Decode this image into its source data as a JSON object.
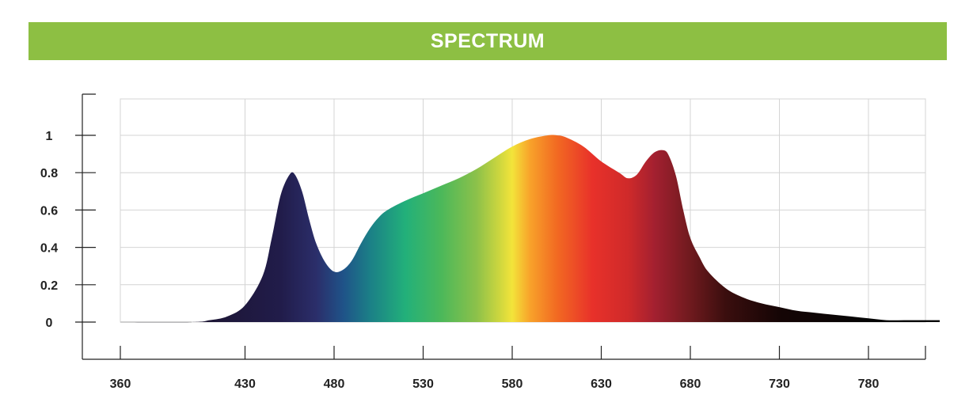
{
  "banner": {
    "title": "SPECTRUM",
    "color": "#8dbf43"
  },
  "chart_data": {
    "type": "area",
    "title": "SPECTRUM",
    "xlabel": "",
    "ylabel": "",
    "xlim": [
      345,
      830
    ],
    "ylim": [
      -0.2,
      1.2
    ],
    "grid": true,
    "x_ticks": [
      360,
      430,
      480,
      530,
      580,
      630,
      680,
      730,
      780
    ],
    "x_tick_labels": [
      "360",
      "430",
      "480",
      "530",
      "580",
      "630",
      "680",
      "730",
      "780"
    ],
    "y_ticks": [
      0,
      0.2,
      0.4,
      0.6,
      0.8,
      1
    ],
    "y_tick_labels": [
      "0",
      "0.2",
      "0.4",
      "0.6",
      "0.8",
      "1"
    ],
    "series": [
      {
        "x": [
          360,
          400,
          410,
          420,
          430,
          440,
          445,
          450,
          455,
          458,
          462,
          466,
          470,
          475,
          480,
          485,
          490,
          495,
          500,
          505,
          510,
          520,
          530,
          540,
          550,
          560,
          570,
          580,
          590,
          600,
          605,
          610,
          620,
          630,
          640,
          645,
          650,
          655,
          660,
          665,
          668,
          672,
          676,
          680,
          685,
          690,
          700,
          710,
          720,
          730,
          740,
          750,
          760,
          770,
          780,
          790,
          800,
          810,
          820
        ],
        "y": [
          0,
          0,
          0.01,
          0.03,
          0.09,
          0.25,
          0.45,
          0.68,
          0.79,
          0.79,
          0.7,
          0.55,
          0.42,
          0.32,
          0.27,
          0.28,
          0.33,
          0.42,
          0.5,
          0.56,
          0.6,
          0.65,
          0.69,
          0.73,
          0.77,
          0.82,
          0.88,
          0.94,
          0.98,
          1.0,
          1.0,
          0.99,
          0.94,
          0.86,
          0.8,
          0.77,
          0.79,
          0.86,
          0.91,
          0.92,
          0.89,
          0.78,
          0.6,
          0.45,
          0.35,
          0.27,
          0.18,
          0.13,
          0.1,
          0.08,
          0.06,
          0.05,
          0.04,
          0.03,
          0.02,
          0.01,
          0.01,
          0.01,
          0.01
        ]
      }
    ],
    "gradient_stops": [
      {
        "x": 400,
        "color": "#1c1430"
      },
      {
        "x": 450,
        "color": "#211c4a"
      },
      {
        "x": 470,
        "color": "#2b2e6a"
      },
      {
        "x": 485,
        "color": "#1f5288"
      },
      {
        "x": 500,
        "color": "#1b7f87"
      },
      {
        "x": 520,
        "color": "#22b07a"
      },
      {
        "x": 540,
        "color": "#4bb85a"
      },
      {
        "x": 560,
        "color": "#8cc14a"
      },
      {
        "x": 572,
        "color": "#c9d53f"
      },
      {
        "x": 580,
        "color": "#f3e43a"
      },
      {
        "x": 590,
        "color": "#f8a22a"
      },
      {
        "x": 605,
        "color": "#f26a22"
      },
      {
        "x": 625,
        "color": "#e8312a"
      },
      {
        "x": 645,
        "color": "#cf2a2a"
      },
      {
        "x": 660,
        "color": "#a32030"
      },
      {
        "x": 680,
        "color": "#6f1a1e"
      },
      {
        "x": 700,
        "color": "#3a0e0e"
      },
      {
        "x": 730,
        "color": "#150505"
      },
      {
        "x": 780,
        "color": "#050505"
      },
      {
        "x": 820,
        "color": "#000000"
      }
    ]
  }
}
